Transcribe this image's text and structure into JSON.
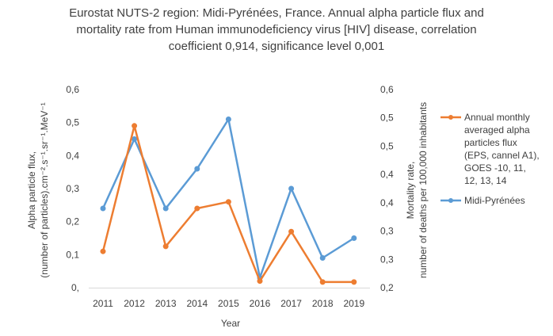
{
  "chart_data": {
    "type": "line",
    "title_lines": [
      "Eurostat NUTS-2 region: Midi-Pyrénées,  France. Annual alpha particle flux and",
      "mortality rate from Human immunodeficiency  virus [HIV] disease, correlation",
      "coefficient 0,914, significance level 0,001"
    ],
    "x": [
      "2011",
      "2012",
      "2013",
      "2014",
      "2015",
      "2016",
      "2017",
      "2018",
      "2019"
    ],
    "xlabel": "Year",
    "ylabel_left_lines": [
      "Alpha particle flux,",
      "(number of particles).cm⁻².s⁻¹.sr⁻¹.MeV⁻¹"
    ],
    "ylabel_right_lines": [
      "Mortality rate,",
      "number of deaths per 100,000 inhabitants"
    ],
    "y_left": {
      "min": 0,
      "max": 0.6,
      "ticks": [
        "0,",
        "0,1",
        "0,2",
        "0,3",
        "0,4",
        "0,5",
        "0,6"
      ]
    },
    "y_right": {
      "min": 0.2,
      "max": 0.6,
      "ticks": [
        "0,2",
        "0,3",
        "0,3",
        "0,4",
        "0,4",
        "0,5",
        "0,5",
        "0,6"
      ]
    },
    "series": [
      {
        "name": "Annual monthly averaged alpha particles flux (EPS, cannel A1), GOES -10, 11, 12, 13, 14",
        "legend_lines": [
          "Annual monthly",
          "averaged alpha",
          "particles flux",
          "(EPS, cannel A1),",
          "GOES -10, 11,",
          "12, 13, 14"
        ],
        "axis": "left",
        "color": "#ED7D31",
        "values": [
          0.11,
          0.49,
          0.125,
          0.24,
          0.26,
          0.02,
          0.17,
          0.017,
          0.017
        ]
      },
      {
        "name": "Midi-Pyrénées",
        "legend_lines": [
          "Midi-Pyrénées"
        ],
        "axis": "right",
        "color": "#5B9BD5",
        "values": [
          0.36,
          0.5,
          0.36,
          0.44,
          0.54,
          0.22,
          0.4,
          0.26,
          0.3
        ]
      }
    ],
    "grid": false,
    "legend_position": "right"
  }
}
